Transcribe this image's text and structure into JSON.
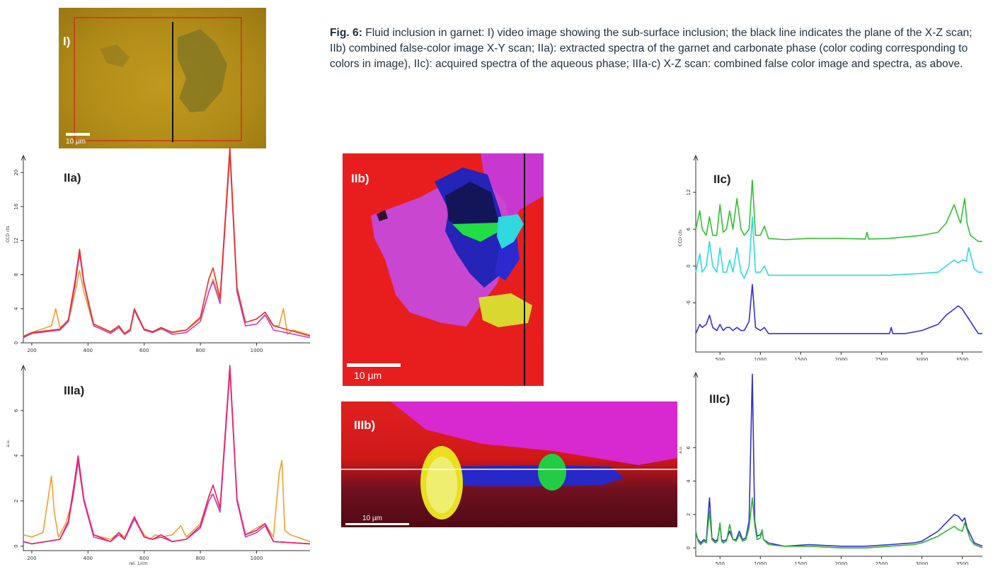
{
  "caption": {
    "fig": "Fig. 6:",
    "text": " Fluid inclusion in garnet: I) video image showing the sub-surface inclusion; the black line indicates the plane of the X-Z scan; IIb) combined false-color image X-Y scan; IIa): extracted spectra of the garnet and carbonate phase (color coding corresponding to colors in image), IIc): acquired spectra of the aqueous phase; IIIa-c) X-Z scan: combined false color image and spectra, as above."
  },
  "panels": {
    "I": {
      "label": "I)",
      "scale": "10 µm"
    },
    "IIa": {
      "label": "IIa)"
    },
    "IIb": {
      "label": "IIb)",
      "scale": "10 µm"
    },
    "IIc": {
      "label": "IIc)"
    },
    "IIIa": {
      "label": "IIIa)"
    },
    "IIIb": {
      "label": "IIIb)",
      "scale": "10 µm"
    },
    "IIIc": {
      "label": "IIIc)"
    }
  },
  "chart_data": [
    {
      "id": "IIa",
      "type": "line",
      "xlabel": "rel. 1/cm",
      "ylabel": "CCD cts",
      "xlim": [
        170,
        1190
      ],
      "ylim": [
        0,
        22
      ],
      "xticks": [
        "200",
        "400",
        "600",
        "800",
        "1000"
      ],
      "yticks": [
        "0",
        "4",
        "8",
        "12",
        "16",
        "20"
      ],
      "colors": [
        "#e8a030",
        "#c040d8",
        "#e83020"
      ],
      "series": [
        {
          "x": [
            170,
            200,
            270,
            285,
            300,
            330,
            355,
            370,
            385,
            420,
            480,
            510,
            530,
            550,
            565,
            600,
            630,
            660,
            700,
            750,
            800,
            830,
            845,
            870,
            905,
            930,
            960,
            1000,
            1030,
            1060,
            1080,
            1095,
            1110,
            1130,
            1190
          ],
          "y": [
            0.8,
            1.2,
            2,
            4,
            1.8,
            2.5,
            6,
            8.5,
            6,
            2,
            1.2,
            1.8,
            1,
            1.5,
            3.8,
            1.5,
            1.2,
            1.6,
            1.3,
            1.5,
            2.8,
            6,
            7.5,
            5,
            22,
            6,
            2,
            2.2,
            3.2,
            2,
            2,
            4,
            1,
            1.5,
            0.9
          ]
        },
        {
          "x": [
            170,
            200,
            300,
            330,
            355,
            370,
            385,
            420,
            480,
            510,
            530,
            550,
            565,
            600,
            630,
            660,
            700,
            750,
            800,
            830,
            845,
            870,
            905,
            930,
            960,
            1000,
            1030,
            1060,
            1190
          ],
          "y": [
            0.6,
            1.1,
            1.5,
            2.5,
            7,
            10.5,
            7,
            2,
            1.1,
            1.8,
            1,
            1.4,
            3.8,
            1.5,
            1.2,
            1.7,
            1,
            1.2,
            2.5,
            6,
            7.2,
            4.6,
            22.5,
            6,
            2,
            2.2,
            3.3,
            1.5,
            0.6
          ]
        },
        {
          "x": [
            170,
            200,
            300,
            330,
            355,
            370,
            385,
            420,
            480,
            510,
            530,
            550,
            565,
            600,
            630,
            660,
            700,
            750,
            800,
            830,
            845,
            870,
            905,
            930,
            960,
            1000,
            1030,
            1060,
            1190
          ],
          "y": [
            0.7,
            1.2,
            1.6,
            2.7,
            7.5,
            11,
            7.2,
            2.2,
            1.3,
            2,
            1.1,
            1.6,
            4,
            1.6,
            1.3,
            1.8,
            1.2,
            1.5,
            3,
            7.5,
            8.8,
            5.2,
            23,
            6.5,
            2.4,
            2.8,
            3.6,
            2,
            0.8
          ]
        }
      ]
    },
    {
      "id": "IIIa",
      "type": "line",
      "xlabel": "rel. 1/cm",
      "ylabel": "a.u.",
      "xlim": [
        170,
        1190
      ],
      "ylim": [
        -0.2,
        8
      ],
      "xticks": [
        "200",
        "400",
        "600",
        "800",
        "1000"
      ],
      "yticks": [
        "0",
        "2",
        "4",
        "6"
      ],
      "colors": [
        "#f0a030",
        "#c040d8",
        "#e82060"
      ],
      "series": [
        {
          "x": [
            170,
            200,
            240,
            270,
            280,
            295,
            320,
            345,
            365,
            385,
            420,
            480,
            510,
            530,
            550,
            565,
            600,
            620,
            640,
            660,
            700,
            730,
            750,
            800,
            830,
            845,
            870,
            905,
            930,
            960,
            1000,
            1030,
            1060,
            1080,
            1090,
            1100,
            1120,
            1190
          ],
          "y": [
            0.5,
            0.4,
            0.6,
            3.1,
            1.5,
            0.4,
            1,
            2,
            3.7,
            2,
            0.5,
            0.3,
            0.6,
            0.4,
            0.8,
            1.2,
            0.5,
            0.3,
            0.5,
            0.4,
            0.5,
            0.9,
            0.4,
            1,
            2.2,
            2.3,
            1.6,
            7.8,
            2,
            0.5,
            0.8,
            1,
            0.4,
            3.2,
            3.8,
            0.7,
            0.5,
            0.2
          ]
        },
        {
          "x": [
            170,
            200,
            300,
            330,
            350,
            365,
            385,
            420,
            480,
            510,
            530,
            550,
            565,
            600,
            630,
            660,
            700,
            750,
            800,
            830,
            845,
            870,
            905,
            930,
            960,
            1000,
            1030,
            1060,
            1190
          ],
          "y": [
            0.2,
            0.1,
            0.3,
            1,
            2.5,
            3.8,
            2,
            0.4,
            0.2,
            0.5,
            0.3,
            0.8,
            1.2,
            0.4,
            0.3,
            0.4,
            0.2,
            0.3,
            0.8,
            2,
            2.3,
            1.5,
            7.8,
            2,
            0.4,
            0.6,
            0.9,
            0.2,
            0.1
          ]
        },
        {
          "x": [
            170,
            200,
            300,
            330,
            350,
            365,
            385,
            420,
            480,
            510,
            530,
            550,
            565,
            600,
            630,
            660,
            700,
            750,
            800,
            830,
            845,
            870,
            905,
            930,
            960,
            1000,
            1030,
            1060,
            1190
          ],
          "y": [
            0.2,
            0.1,
            0.3,
            1.1,
            2.7,
            4,
            2.1,
            0.5,
            0.2,
            0.6,
            0.3,
            0.9,
            1.3,
            0.4,
            0.3,
            0.5,
            0.2,
            0.3,
            0.9,
            2.2,
            2.7,
            1.7,
            8,
            2.1,
            0.5,
            0.7,
            1,
            0.2,
            0.1
          ]
        }
      ]
    },
    {
      "id": "IIc",
      "type": "line",
      "xlabel": "rel. 1/cm",
      "ylabel": "CCD cts",
      "xlim": [
        200,
        3750
      ],
      "ylim": [
        -14,
        18
      ],
      "xticks": [
        "500",
        "1000",
        "1500",
        "2000",
        "2500",
        "3000",
        "3500"
      ],
      "yticks": [
        "-6",
        "0",
        "6",
        "12"
      ],
      "colors": [
        "#30c030",
        "#30d8e0",
        "#3030d8"
      ],
      "series": [
        {
          "x": [
            200,
            250,
            280,
            330,
            370,
            410,
            460,
            500,
            540,
            580,
            620,
            660,
            710,
            760,
            800,
            860,
            900,
            940,
            1000,
            1050,
            1100,
            1300,
            1600,
            2000,
            2300,
            2320,
            2340,
            2600,
            3000,
            3200,
            3300,
            3400,
            3450,
            3480,
            3530,
            3560,
            3600,
            3650,
            3700,
            3750
          ],
          "y": [
            6,
            9,
            6,
            5,
            8,
            5,
            5,
            10,
            5.5,
            6,
            9,
            6,
            11,
            6,
            5,
            6,
            14,
            5,
            5,
            6.5,
            4.5,
            4.3,
            4.5,
            4.5,
            4.4,
            5.5,
            4.4,
            4.5,
            5,
            5.5,
            7,
            10,
            8,
            7,
            11,
            7,
            5,
            4.5,
            4,
            4
          ]
        },
        {
          "x": [
            200,
            250,
            280,
            330,
            370,
            410,
            460,
            500,
            540,
            580,
            620,
            660,
            710,
            760,
            800,
            860,
            900,
            940,
            1000,
            1050,
            1100,
            1300,
            1600,
            2000,
            2300,
            2600,
            3000,
            3200,
            3300,
            3400,
            3450,
            3500,
            3550,
            3580,
            3620,
            3650,
            3700,
            3750
          ],
          "y": [
            -1,
            2,
            -1,
            0,
            4,
            0,
            -1,
            3,
            -1,
            -1,
            1,
            -1,
            3,
            -1,
            -2,
            0,
            8,
            -1,
            -1,
            0,
            -1.5,
            -1.5,
            -1.5,
            -1.5,
            -1.5,
            -1.5,
            -1.2,
            -1,
            0,
            1,
            0.5,
            1,
            0.8,
            3,
            1,
            -0.5,
            -1,
            -1
          ]
        },
        {
          "x": [
            200,
            250,
            280,
            330,
            370,
            410,
            460,
            500,
            540,
            580,
            620,
            660,
            710,
            760,
            800,
            860,
            900,
            940,
            1000,
            1050,
            1100,
            1300,
            1600,
            2000,
            2300,
            2600,
            2620,
            2640,
            2800,
            3000,
            3200,
            3300,
            3400,
            3450,
            3500,
            3550,
            3600,
            3650,
            3700,
            3750
          ],
          "y": [
            -11,
            -9.5,
            -10,
            -9.5,
            -8,
            -10,
            -10.5,
            -9.5,
            -10.5,
            -10,
            -10,
            -10.5,
            -10,
            -10.5,
            -10.5,
            -9,
            -3,
            -10,
            -10.5,
            -10,
            -11,
            -11,
            -11,
            -11,
            -11,
            -11,
            -10,
            -11,
            -11,
            -10.5,
            -9.5,
            -8,
            -7,
            -6.5,
            -7,
            -8,
            -9,
            -10,
            -11,
            -11
          ]
        }
      ]
    },
    {
      "id": "IIIc",
      "type": "line",
      "xlabel": "rel. 1/cm",
      "ylabel": "a.u.",
      "xlim": [
        200,
        3750
      ],
      "ylim": [
        -0.5,
        10.5
      ],
      "xticks": [
        "500",
        "1000",
        "1500",
        "2000",
        "2500",
        "3000",
        "3500"
      ],
      "yticks": [
        "0",
        "2",
        "4",
        "6"
      ],
      "colors": [
        "#3030c8",
        "#30b030"
      ],
      "series": [
        {
          "x": [
            200,
            230,
            260,
            300,
            330,
            370,
            400,
            440,
            470,
            500,
            520,
            540,
            580,
            620,
            660,
            700,
            740,
            780,
            820,
            860,
            900,
            930,
            960,
            1000,
            1020,
            1040,
            1100,
            1300,
            1600,
            2000,
            2300,
            2600,
            2900,
            3000,
            3100,
            3200,
            3300,
            3400,
            3450,
            3500,
            3530,
            3560,
            3600,
            3650,
            3700,
            3750
          ],
          "y": [
            0.8,
            0.5,
            0.3,
            0.5,
            0.4,
            3,
            0.6,
            0.4,
            0.5,
            1.4,
            0.5,
            0.4,
            0.5,
            1,
            0.5,
            0.5,
            1,
            0.5,
            0.6,
            1.6,
            10.4,
            1.6,
            0.7,
            0.8,
            1,
            0.5,
            0.3,
            0.1,
            0.2,
            0.1,
            0.1,
            0.2,
            0.3,
            0.4,
            0.7,
            1,
            1.5,
            2,
            1.9,
            1.6,
            1.8,
            1.2,
            0.8,
            0.3,
            0.2,
            0.1
          ]
        },
        {
          "x": [
            200,
            230,
            260,
            300,
            330,
            370,
            400,
            440,
            470,
            500,
            520,
            540,
            580,
            620,
            660,
            700,
            740,
            780,
            820,
            860,
            900,
            930,
            960,
            1000,
            1020,
            1040,
            1100,
            1300,
            1600,
            2000,
            2300,
            2600,
            2900,
            3000,
            3100,
            3200,
            3300,
            3400,
            3450,
            3500,
            3530,
            3560,
            3600,
            3650,
            3700,
            3750
          ],
          "y": [
            1,
            0.4,
            0.2,
            0.4,
            0.3,
            2.2,
            0.5,
            0.3,
            0.4,
            1.5,
            0.4,
            0.3,
            0.4,
            1.4,
            0.5,
            0.4,
            0.8,
            0.4,
            0.5,
            1.2,
            3,
            1.4,
            0.5,
            0.6,
            1.1,
            0.5,
            0.2,
            0.1,
            0.1,
            0,
            0,
            0.1,
            0.2,
            0.3,
            0.5,
            0.7,
            1,
            1.3,
            1.1,
            1,
            1.5,
            1.1,
            0.5,
            0.2,
            0.1,
            0
          ]
        }
      ]
    }
  ]
}
